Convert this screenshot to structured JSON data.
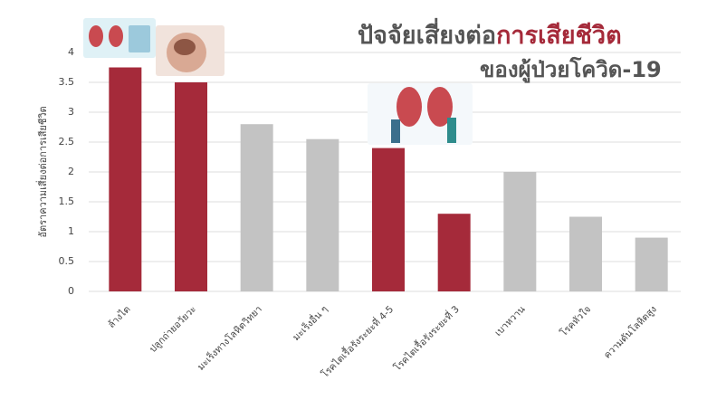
{
  "chart_data": {
    "type": "bar",
    "title_parts": [
      {
        "text": "ปัจจัยเสี่ยงต่อ",
        "color": "#555555"
      },
      {
        "text": "การเสียชีวิต",
        "color": "#a52a3a"
      }
    ],
    "subtitle": "ของผู้ป่วยโควิด-19",
    "y_label": "อัตราความเสี่ยงต่อการเสียชีวิต",
    "categories": [
      "ล้างไต",
      "ปลูกถ่ายอวัยวะ",
      "มะเร็งทางโลหิตวิทยา",
      "มะเร็งอื่น ๆ",
      "โรคไตเรื้อรังระยะที่ 4-5",
      "โรคไตเรื้อรังระยะที่ 3",
      "เบาหวาน",
      "โรคหัวใจ",
      "ความดันโลหิตสูง"
    ],
    "values": [
      3.75,
      3.5,
      2.8,
      2.55,
      2.4,
      1.3,
      2.0,
      1.25,
      0.9
    ],
    "colors": [
      "#a52a3a",
      "#a52a3a",
      "#c3c3c3",
      "#c3c3c3",
      "#a52a3a",
      "#a52a3a",
      "#c3c3c3",
      "#c3c3c3",
      "#c3c3c3"
    ],
    "ylim": [
      0,
      4
    ],
    "yticks": [
      0,
      0.5,
      1,
      1.5,
      2,
      2.5,
      3,
      3.5,
      4
    ],
    "grid": true
  }
}
